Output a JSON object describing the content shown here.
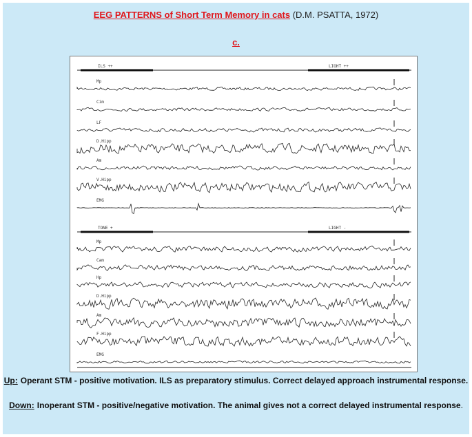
{
  "header": {
    "title": "EEG PATTERNS of Short Term Memory in cats",
    "author": "(D.M. PSATTA, 1972)",
    "panel": "c."
  },
  "figure": {
    "up": {
      "markers": [
        "ILS ++",
        "LIGHT ++"
      ],
      "channels": [
        "Mp",
        "Cim",
        "LF",
        "D.Hipp",
        "Am",
        "V.Hipp",
        "EMG"
      ]
    },
    "down": {
      "markers": [
        "TONE +",
        "LIGHT -"
      ],
      "channels": [
        "Mp",
        "Cam",
        "Hp",
        "D.Hipp",
        "Am",
        "F.Hipp",
        "EMG"
      ]
    }
  },
  "caption": {
    "up_label": "Up:",
    "up_text": "Operant STM - positive motivation. ILS as preparatory stimulus. Correct delayed  approach instrumental response.",
    "down_label": "Down:",
    "down_text": "Inoperant STM - positive/negative motivation. The animal gives not a correct delayed instrumental response",
    "down_end": "."
  }
}
